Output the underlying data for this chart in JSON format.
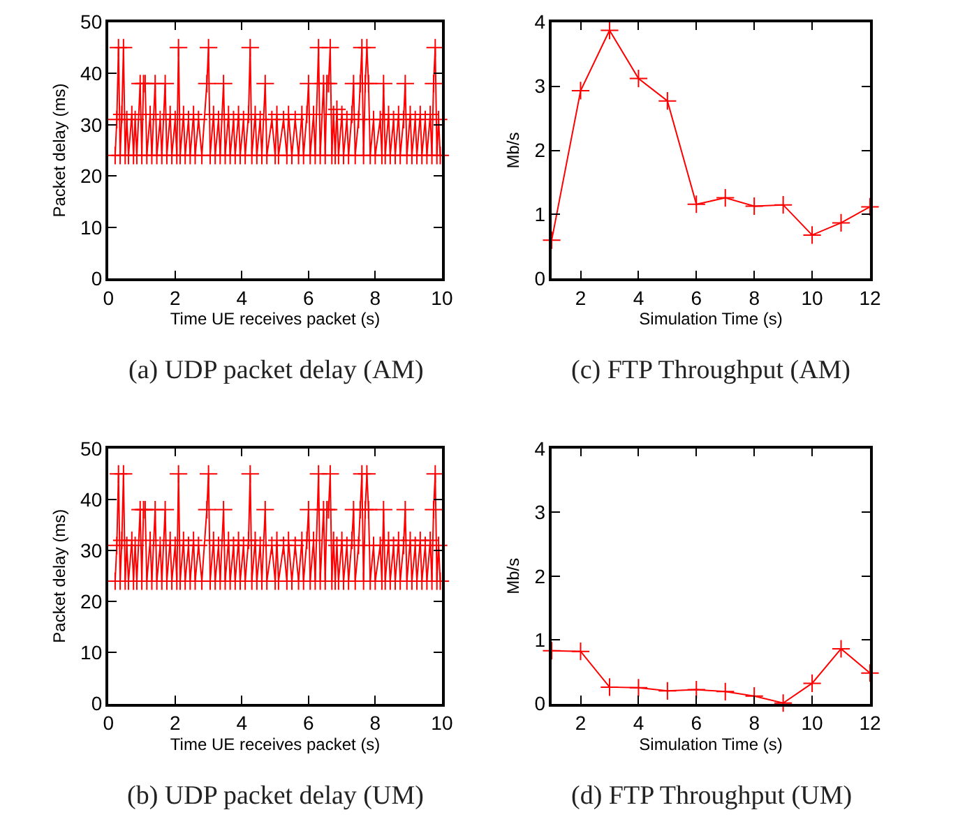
{
  "chart_data": [
    {
      "type": "line",
      "title": "(a) UDP packet delay (AM)",
      "xlabel": "Time UE receives packet (s)",
      "ylabel": "Packet delay (ms)",
      "xlim": [
        0,
        10
      ],
      "xticks": [
        0,
        2,
        4,
        6,
        8,
        10
      ],
      "ylim": [
        0,
        50
      ],
      "yticks": [
        0,
        10,
        20,
        30,
        40,
        50
      ],
      "marker": "cross",
      "line_style": "solid",
      "series": [
        {
          "color": "#ff0000",
          "x": [
            0.2,
            0.25,
            0.3,
            0.35,
            0.4,
            0.45,
            0.5,
            0.55,
            0.6,
            0.7,
            0.75,
            0.8,
            0.85,
            0.95,
            1.0,
            1.05,
            1.1,
            1.15,
            1.25,
            1.3,
            1.4,
            1.45,
            1.55,
            1.6,
            1.7,
            1.75,
            1.85,
            1.9,
            2.0,
            2.05,
            2.1,
            2.15,
            2.25,
            2.3,
            2.4,
            2.45,
            2.55,
            2.6,
            2.7,
            2.8,
            2.95,
            3.0,
            3.05,
            3.15,
            3.2,
            3.3,
            3.35,
            3.45,
            3.5,
            3.6,
            3.65,
            3.75,
            3.8,
            3.9,
            3.95,
            4.05,
            4.1,
            4.2,
            4.25,
            4.3,
            4.4,
            4.45,
            4.55,
            4.6,
            4.7,
            4.75,
            4.9,
            5.0,
            5.05,
            5.1,
            5.25,
            5.35,
            5.4,
            5.5,
            5.6,
            5.7,
            5.8,
            5.85,
            5.95,
            6.0,
            6.05,
            6.15,
            6.2,
            6.3,
            6.35,
            6.45,
            6.5,
            6.55,
            6.6,
            6.65,
            6.7,
            6.75,
            6.8,
            6.85,
            6.9,
            7.0,
            7.05,
            7.15,
            7.2,
            7.3,
            7.35,
            7.4,
            7.5,
            7.55,
            7.6,
            7.65,
            7.7,
            7.75,
            7.8,
            7.85,
            7.95,
            8.0,
            8.15,
            8.2,
            8.25,
            8.3,
            8.4,
            8.45,
            8.55,
            8.6,
            8.7,
            8.75,
            8.85,
            8.9,
            8.95,
            9.05,
            9.1,
            9.2,
            9.25,
            9.35,
            9.4,
            9.5,
            9.55,
            9.65,
            9.7,
            9.75,
            9.8,
            9.85,
            9.9,
            9.95
          ],
          "values": [
            24,
            31,
            45,
            24,
            32,
            45,
            24,
            31,
            24,
            32,
            24,
            31,
            24,
            38,
            24,
            38,
            38,
            24,
            32,
            24,
            38,
            24,
            31,
            24,
            38,
            24,
            32,
            24,
            31,
            24,
            45,
            24,
            32,
            24,
            31,
            24,
            32,
            24,
            31,
            24,
            38,
            45,
            24,
            32,
            24,
            31,
            24,
            38,
            24,
            32,
            24,
            31,
            24,
            32,
            24,
            31,
            24,
            32,
            45,
            24,
            32,
            24,
            31,
            24,
            38,
            24,
            31,
            24,
            32,
            24,
            31,
            24,
            32,
            24,
            31,
            24,
            32,
            24,
            32,
            38,
            24,
            32,
            24,
            45,
            24,
            38,
            24,
            38,
            38,
            45,
            24,
            32,
            24,
            33,
            24,
            32,
            24,
            31,
            24,
            32,
            38,
            24,
            31,
            38,
            45,
            24,
            38,
            45,
            38,
            24,
            31,
            24,
            31,
            24,
            38,
            24,
            32,
            24,
            31,
            24,
            32,
            24,
            31,
            38,
            24,
            32,
            24,
            31,
            24,
            32,
            24,
            31,
            24,
            32,
            24,
            38,
            45,
            24,
            31,
            24
          ]
        }
      ]
    },
    {
      "type": "line",
      "title": "(c) FTP Throughput (AM)",
      "xlabel": "Simulation Time (s)",
      "ylabel": "Mb/s",
      "xlim": [
        1,
        12
      ],
      "xticks": [
        2,
        4,
        6,
        8,
        10,
        12
      ],
      "ylim": [
        0,
        4
      ],
      "yticks": [
        0,
        1,
        2,
        3,
        4
      ],
      "marker": "cross",
      "line_style": "solid",
      "series": [
        {
          "color": "#ff0000",
          "x": [
            1,
            2,
            3,
            4,
            5,
            6,
            7,
            8,
            9,
            10,
            11,
            12
          ],
          "values": [
            0.6,
            2.93,
            3.87,
            3.12,
            2.77,
            1.16,
            1.26,
            1.13,
            1.15,
            0.68,
            0.87,
            1.12
          ]
        }
      ]
    },
    {
      "type": "line",
      "title": "(b) UDP packet delay (UM)",
      "xlabel": "Time UE receives packet (s)",
      "ylabel": "Packet delay (ms)",
      "xlim": [
        0,
        10
      ],
      "xticks": [
        0,
        2,
        4,
        6,
        8,
        10
      ],
      "ylim": [
        0,
        50
      ],
      "yticks": [
        0,
        10,
        20,
        30,
        40,
        50
      ],
      "marker": "cross",
      "line_style": "solid",
      "series": [
        {
          "color": "#ff0000",
          "x": [
            0.2,
            0.25,
            0.3,
            0.35,
            0.4,
            0.45,
            0.5,
            0.55,
            0.6,
            0.7,
            0.75,
            0.8,
            0.85,
            0.95,
            1.0,
            1.05,
            1.1,
            1.15,
            1.25,
            1.3,
            1.4,
            1.45,
            1.55,
            1.6,
            1.7,
            1.75,
            1.85,
            1.9,
            2.0,
            2.05,
            2.1,
            2.15,
            2.25,
            2.3,
            2.4,
            2.45,
            2.55,
            2.6,
            2.7,
            2.8,
            2.95,
            3.0,
            3.05,
            3.15,
            3.2,
            3.3,
            3.35,
            3.45,
            3.5,
            3.6,
            3.65,
            3.75,
            3.8,
            3.9,
            3.95,
            4.05,
            4.1,
            4.2,
            4.25,
            4.3,
            4.4,
            4.45,
            4.55,
            4.6,
            4.7,
            4.75,
            4.9,
            5.0,
            5.05,
            5.1,
            5.25,
            5.35,
            5.4,
            5.5,
            5.6,
            5.7,
            5.8,
            5.85,
            5.95,
            6.0,
            6.05,
            6.15,
            6.2,
            6.3,
            6.35,
            6.45,
            6.5,
            6.55,
            6.6,
            6.65,
            6.7,
            6.75,
            6.8,
            6.85,
            6.9,
            7.0,
            7.05,
            7.15,
            7.2,
            7.3,
            7.35,
            7.4,
            7.5,
            7.55,
            7.6,
            7.65,
            7.7,
            7.75,
            7.8,
            7.85,
            7.95,
            8.0,
            8.15,
            8.2,
            8.25,
            8.3,
            8.4,
            8.45,
            8.55,
            8.6,
            8.7,
            8.75,
            8.85,
            8.9,
            8.95,
            9.05,
            9.1,
            9.2,
            9.25,
            9.35,
            9.4,
            9.5,
            9.55,
            9.65,
            9.7,
            9.75,
            9.8,
            9.85,
            9.9,
            9.95
          ],
          "values": [
            24,
            31,
            45,
            24,
            32,
            45,
            24,
            31,
            24,
            32,
            24,
            31,
            24,
            38,
            24,
            38,
            38,
            24,
            32,
            24,
            38,
            24,
            31,
            24,
            38,
            24,
            32,
            24,
            31,
            24,
            45,
            24,
            32,
            24,
            31,
            24,
            32,
            24,
            31,
            24,
            38,
            45,
            24,
            32,
            24,
            31,
            24,
            38,
            24,
            32,
            24,
            31,
            24,
            32,
            24,
            31,
            24,
            32,
            45,
            24,
            32,
            24,
            31,
            24,
            38,
            24,
            31,
            24,
            32,
            24,
            31,
            24,
            32,
            24,
            31,
            24,
            32,
            24,
            32,
            38,
            24,
            32,
            24,
            45,
            24,
            38,
            24,
            38,
            38,
            45,
            24,
            32,
            24,
            31,
            24,
            32,
            24,
            31,
            24,
            32,
            38,
            24,
            31,
            38,
            45,
            24,
            38,
            45,
            38,
            24,
            31,
            24,
            31,
            24,
            38,
            24,
            32,
            24,
            31,
            24,
            32,
            24,
            31,
            38,
            24,
            32,
            24,
            31,
            24,
            32,
            24,
            31,
            24,
            32,
            24,
            38,
            45,
            24,
            31,
            24
          ]
        }
      ]
    },
    {
      "type": "line",
      "title": "(d) FTP Throughput (UM)",
      "xlabel": "Simulation Time (s)",
      "ylabel": "Mb/s",
      "xlim": [
        1,
        12
      ],
      "xticks": [
        2,
        4,
        6,
        8,
        10,
        12
      ],
      "ylim": [
        0,
        4
      ],
      "yticks": [
        0,
        1,
        2,
        3,
        4
      ],
      "marker": "cross",
      "line_style": "solid",
      "series": [
        {
          "color": "#ff0000",
          "x": [
            1,
            2,
            3,
            4,
            5,
            6,
            7,
            8,
            9,
            10,
            11,
            12
          ],
          "values": [
            0.83,
            0.82,
            0.26,
            0.25,
            0.2,
            0.22,
            0.19,
            0.12,
            0.01,
            0.32,
            0.86,
            0.48
          ]
        }
      ]
    }
  ]
}
